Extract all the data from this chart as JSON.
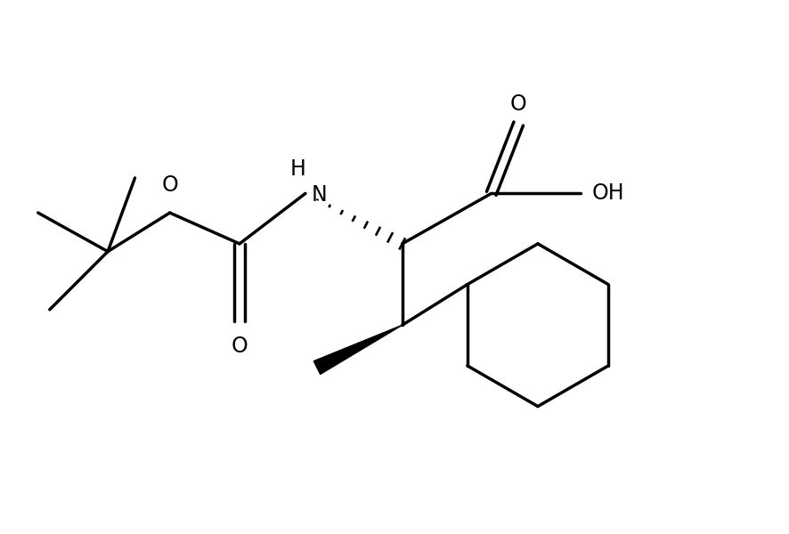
{
  "bg_color": "#ffffff",
  "line_color": "#000000",
  "line_width": 2.5,
  "fig_width": 8.86,
  "fig_height": 6.0,
  "dpi": 100,
  "xlim": [
    0,
    10
  ],
  "ylim": [
    0,
    6.8
  ],
  "font_size": 17
}
